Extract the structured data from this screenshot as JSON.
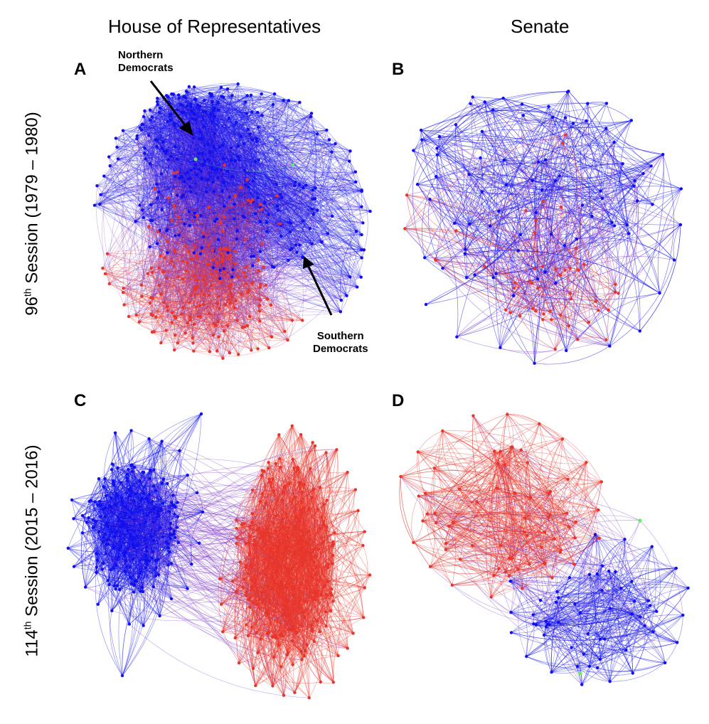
{
  "columns": {
    "house": "House of Representatives",
    "senate": "Senate"
  },
  "rows": {
    "session96": {
      "prefix": "96",
      "sup": "th",
      "suffix": " Session (1979 – 1980)"
    },
    "session114": {
      "prefix": "114",
      "sup": "th",
      "suffix": " Session (2015 – 2016)"
    }
  },
  "panels": {
    "a": {
      "letter": "A",
      "chamber": "House of Representatives",
      "session": "96th"
    },
    "b": {
      "letter": "B",
      "chamber": "Senate",
      "session": "96th"
    },
    "c": {
      "letter": "C",
      "chamber": "House of Representatives",
      "session": "114th"
    },
    "d": {
      "letter": "D",
      "chamber": "Senate",
      "session": "114th"
    }
  },
  "annotations": {
    "northern": {
      "line1": "Northern",
      "line2": "Democrats"
    },
    "southern": {
      "line1": "Southern",
      "line2": "Democrats"
    }
  },
  "colors": {
    "democrat": "#1010ee",
    "republican": "#e8352a",
    "independent": "#5ef05e",
    "mixed": "#8844cc"
  }
}
